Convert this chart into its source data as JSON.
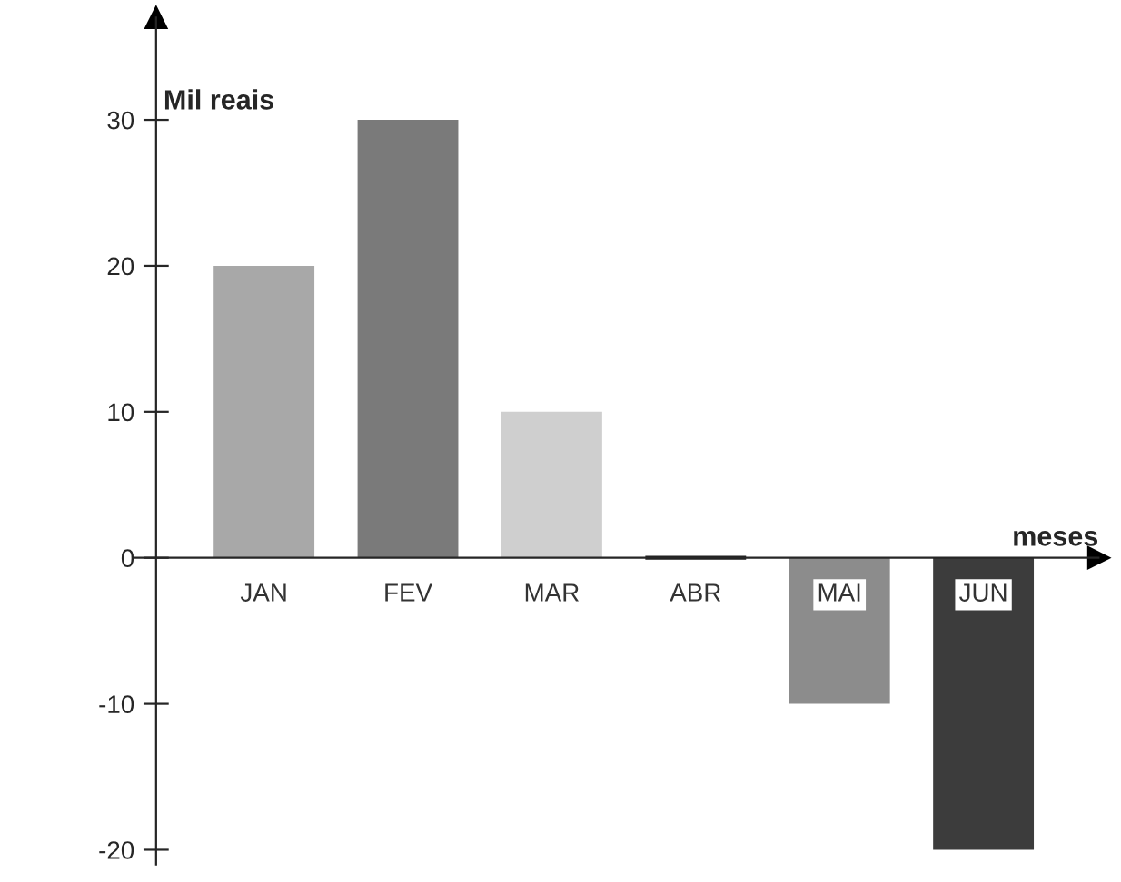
{
  "chart_data": {
    "type": "bar",
    "xlabel": "meses",
    "ylabel": "Mil reais",
    "categories": [
      "JAN",
      "FEV",
      "MAR",
      "ABR",
      "MAI",
      "JUN"
    ],
    "values": [
      20,
      30,
      10,
      0,
      -10,
      -20
    ],
    "colors": [
      "#a8a8a8",
      "#7a7a7a",
      "#cfcfcf",
      "#202020",
      "#8c8c8c",
      "#3c3c3c"
    ],
    "ylim": [
      -21,
      37
    ],
    "yticks": [
      -20,
      -10,
      0,
      10,
      20,
      30
    ],
    "grid": false,
    "legend": false
  }
}
